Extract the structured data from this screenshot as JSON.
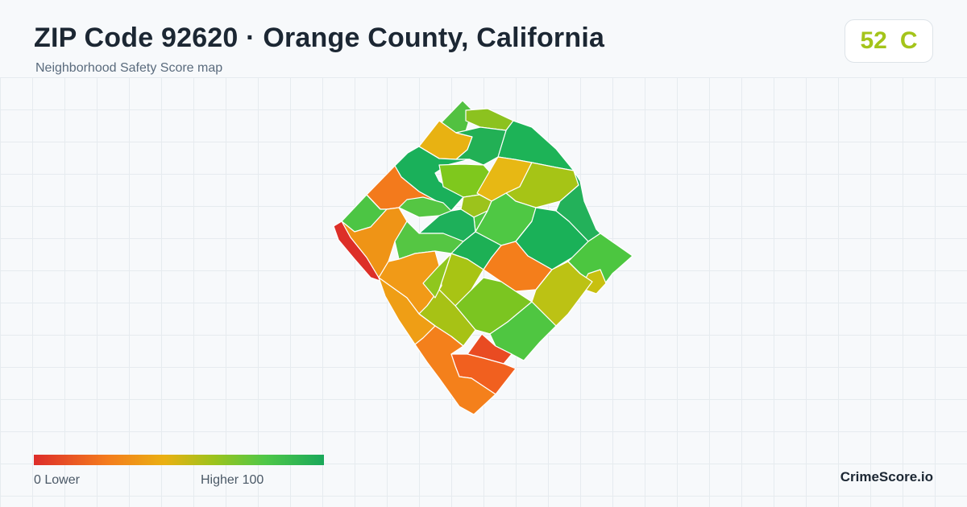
{
  "header": {
    "title": "ZIP Code 92620 · Orange County, California",
    "subtitle": "Neighborhood Safety Score map"
  },
  "score": {
    "value": "52",
    "grade": "C",
    "color": "#a4c41a"
  },
  "legend": {
    "min_label": "0  Lower",
    "max_label": "Higher  100",
    "colors": [
      "#dd2d2a",
      "#f47b1d",
      "#eab012",
      "#9cc31c",
      "#4ec748",
      "#1aa85a"
    ]
  },
  "brand": "CrimeScore.io",
  "map": {
    "border_color": "#ffffff",
    "regions": [
      {
        "name": "region-north-tip",
        "color": "#52c141"
      },
      {
        "name": "region-north-lime",
        "color": "#8cc21f"
      },
      {
        "name": "region-northeast-green",
        "color": "#1db357"
      },
      {
        "name": "region-north-yellow",
        "color": "#e8b212"
      },
      {
        "name": "region-north-mid-green",
        "color": "#22b055"
      },
      {
        "name": "region-north-west-green",
        "color": "#1ab05a"
      },
      {
        "name": "region-north-lime-oval",
        "color": "#7fc81d"
      },
      {
        "name": "region-north-yellow-small",
        "color": "#e7b814"
      },
      {
        "name": "region-east-olive",
        "color": "#a6c416"
      },
      {
        "name": "region-east-green-1",
        "color": "#23b15a"
      },
      {
        "name": "region-west-orange",
        "color": "#f37a1c"
      },
      {
        "name": "region-west-green",
        "color": "#4cc544"
      },
      {
        "name": "region-west-light-green",
        "color": "#55c643"
      },
      {
        "name": "region-center-olive",
        "color": "#9cc31c"
      },
      {
        "name": "region-center-green",
        "color": "#4fc844"
      },
      {
        "name": "region-center-dark-green",
        "color": "#1eb05a"
      },
      {
        "name": "region-center-teal",
        "color": "#1ab158"
      },
      {
        "name": "region-west-orange-mid",
        "color": "#ef9416"
      },
      {
        "name": "region-center-green-2",
        "color": "#55c643"
      },
      {
        "name": "region-east-dark",
        "color": "#1db055"
      },
      {
        "name": "region-east-light",
        "color": "#4cc640"
      },
      {
        "name": "region-east-yellow",
        "color": "#c8c00f"
      },
      {
        "name": "region-center-orange",
        "color": "#f47e1b"
      },
      {
        "name": "region-west-red",
        "color": "#dd2f28"
      },
      {
        "name": "region-center-olive-2",
        "color": "#a8c414"
      },
      {
        "name": "region-south-lime",
        "color": "#7bc521"
      },
      {
        "name": "region-east-olive-2",
        "color": "#bcc214"
      },
      {
        "name": "region-south-green",
        "color": "#4fc641"
      },
      {
        "name": "region-south-west-red",
        "color": "#e23a26"
      },
      {
        "name": "region-south-west-orange",
        "color": "#f19a17"
      },
      {
        "name": "region-south-olive",
        "color": "#a7c215"
      },
      {
        "name": "region-south-orange",
        "color": "#ef9e15"
      },
      {
        "name": "region-south-red",
        "color": "#e94b22"
      },
      {
        "name": "region-south-red-orange",
        "color": "#f1601f"
      },
      {
        "name": "region-south-tip",
        "color": "#f4801b"
      },
      {
        "name": "region-center-lime-small",
        "color": "#8fc71e"
      }
    ]
  }
}
